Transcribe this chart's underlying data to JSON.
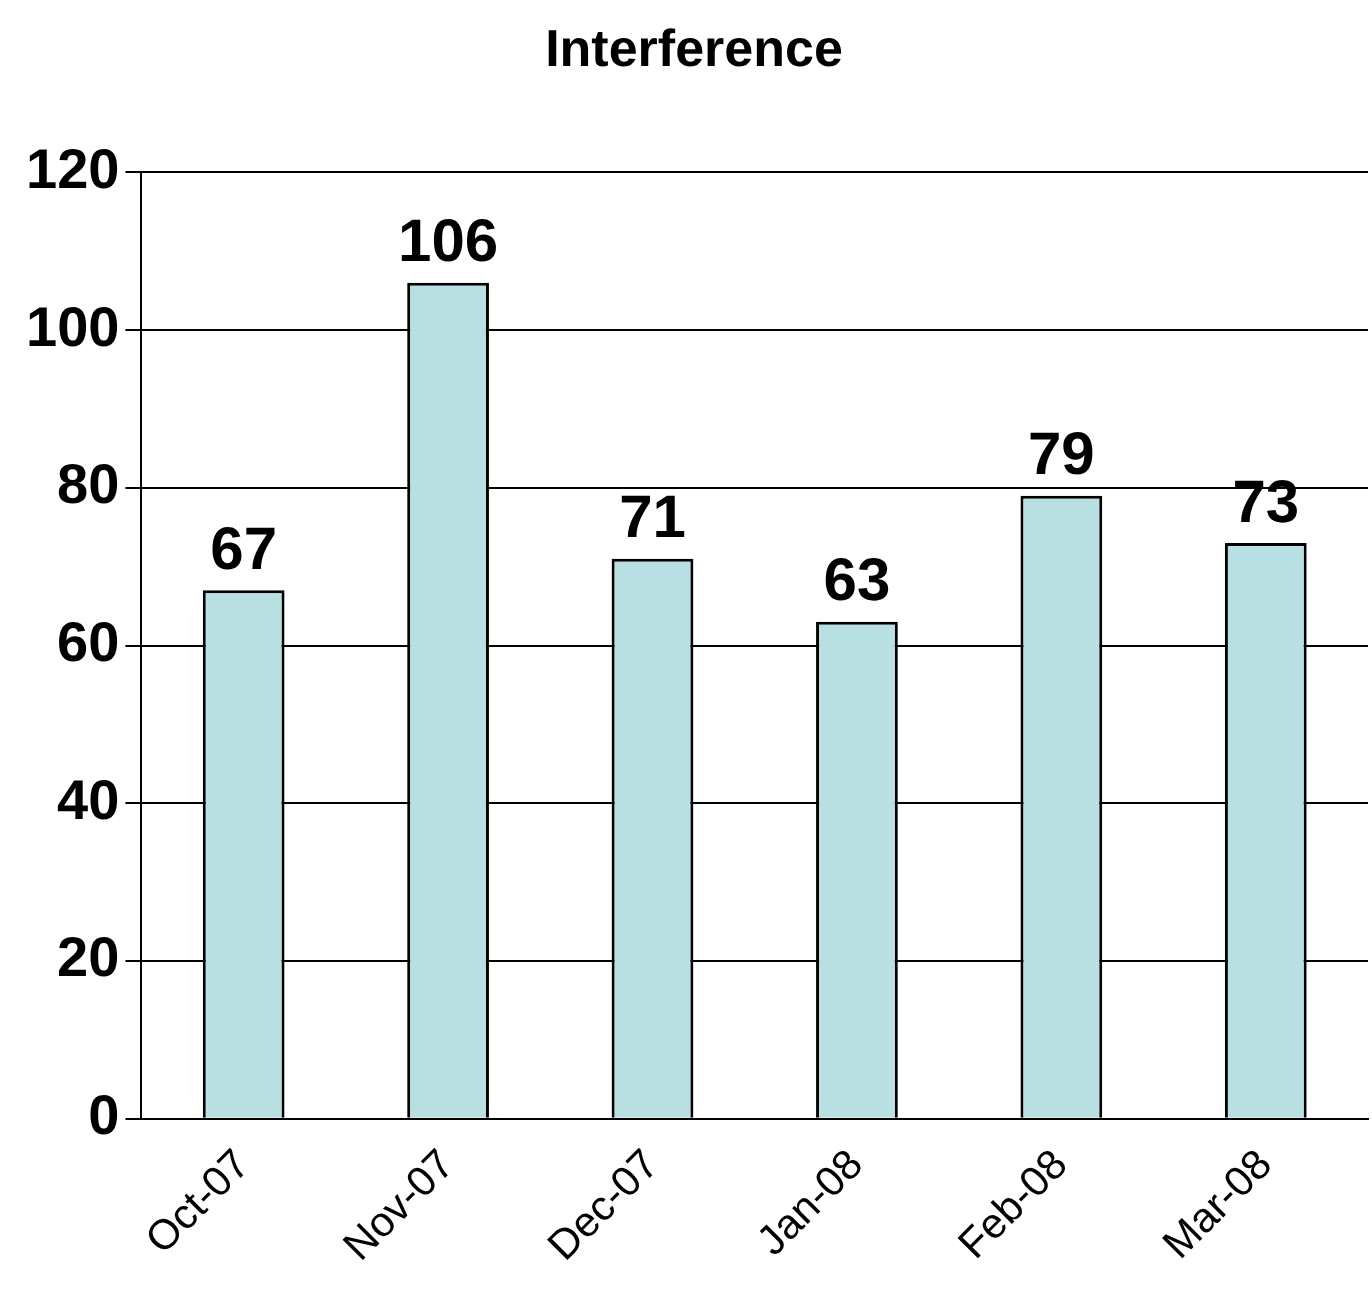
{
  "chart_data": {
    "type": "bar",
    "title": "Interference",
    "categories": [
      "Oct-07",
      "Nov-07",
      "Dec-07",
      "Jan-08",
      "Feb-08",
      "Mar-08"
    ],
    "values": [
      67,
      106,
      71,
      63,
      79,
      73
    ],
    "color": "#b8dfe1",
    "ylim": [
      0,
      120
    ],
    "yticks": [
      0,
      20,
      40,
      60,
      80,
      100,
      120
    ],
    "grid": "y",
    "data_labels": true
  }
}
